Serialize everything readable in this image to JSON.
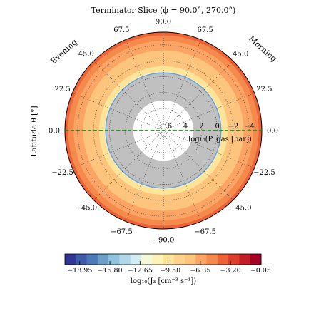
{
  "chart_data": {
    "type": "polar-contour",
    "title": "Terminator Slice (ϕ = 90.0°, 270.0°)",
    "ylabel": "Latitude θ [°]",
    "radial_label": "log₁₀(P_gas [bar])",
    "side_labels": {
      "left": "Evening",
      "right": "Morning"
    },
    "latitude_ticks": [
      {
        "value": 90.0,
        "label": "90.0"
      },
      {
        "value": 67.5,
        "label": "67.5"
      },
      {
        "value": 45.0,
        "label": "45.0"
      },
      {
        "value": 22.5,
        "label": "22.5"
      },
      {
        "value": 0.0,
        "label": "0.0"
      },
      {
        "value": -22.5,
        "label": "−22.5"
      },
      {
        "value": -45.0,
        "label": "−45.0"
      },
      {
        "value": -67.5,
        "label": "−67.5"
      },
      {
        "value": -90.0,
        "label": "−90.0"
      }
    ],
    "pressure_ticks": [
      {
        "value": 6,
        "label": "6"
      },
      {
        "value": 4,
        "label": "4"
      },
      {
        "value": 2,
        "label": "2"
      },
      {
        "value": 0,
        "label": "0"
      },
      {
        "value": -2,
        "label": "−2"
      },
      {
        "value": -4,
        "label": "−4"
      }
    ],
    "pressure_range": [
      6.8,
      -5.6
    ],
    "inner_void_pressure": 3.0,
    "no_data_color": "#c0c0c0",
    "equator_line": {
      "color": "#1a8a1a",
      "style": "dashed"
    },
    "nucleation_boundary_color": "#6a9fd8",
    "bands": [
      {
        "log_p_top": -5.6,
        "log_p_bottom": -5.2,
        "value": -1.0,
        "color": "#ee6238"
      },
      {
        "log_p_top": -5.2,
        "log_p_bottom": -4.5,
        "value": -2.0,
        "color": "#f58a4d"
      },
      {
        "log_p_top": -4.5,
        "log_p_bottom": -3.3,
        "value": -3.0,
        "color": "#fba464"
      },
      {
        "log_p_top": -3.3,
        "log_p_bottom": -1.3,
        "value": -4.5,
        "color": "#fdc47e"
      },
      {
        "log_p_top": -1.3,
        "log_p_bottom": -0.6,
        "value": -7.5,
        "color": "#fee498"
      },
      {
        "log_p_top": -0.6,
        "log_p_bottom": -0.4,
        "value": -11.0,
        "color": "#f4fad8"
      }
    ],
    "colorbar": {
      "label": "log₁₀(J₃ [cm⁻³ s⁻¹])",
      "range": [
        -20.5,
        0.0
      ],
      "tick_values": [
        -18.95,
        -15.8,
        -12.65,
        -9.5,
        -6.35,
        -3.2,
        -0.05
      ],
      "tick_labels": [
        "−18.95",
        "−15.80",
        "−12.65",
        "−9.50",
        "−6.35",
        "−3.20",
        "−0.05"
      ],
      "colors": [
        "#313695",
        "#3d5ba6",
        "#4a7ab7",
        "#6c9ec8",
        "#8ec2dd",
        "#b0d8e8",
        "#d3ecf1",
        "#f4fad8",
        "#fef3b6",
        "#fee498",
        "#fdd38c",
        "#fdc47e",
        "#fba464",
        "#f58a4d",
        "#ee6238",
        "#dd3d2d",
        "#c31e28",
        "#a50026"
      ]
    }
  }
}
